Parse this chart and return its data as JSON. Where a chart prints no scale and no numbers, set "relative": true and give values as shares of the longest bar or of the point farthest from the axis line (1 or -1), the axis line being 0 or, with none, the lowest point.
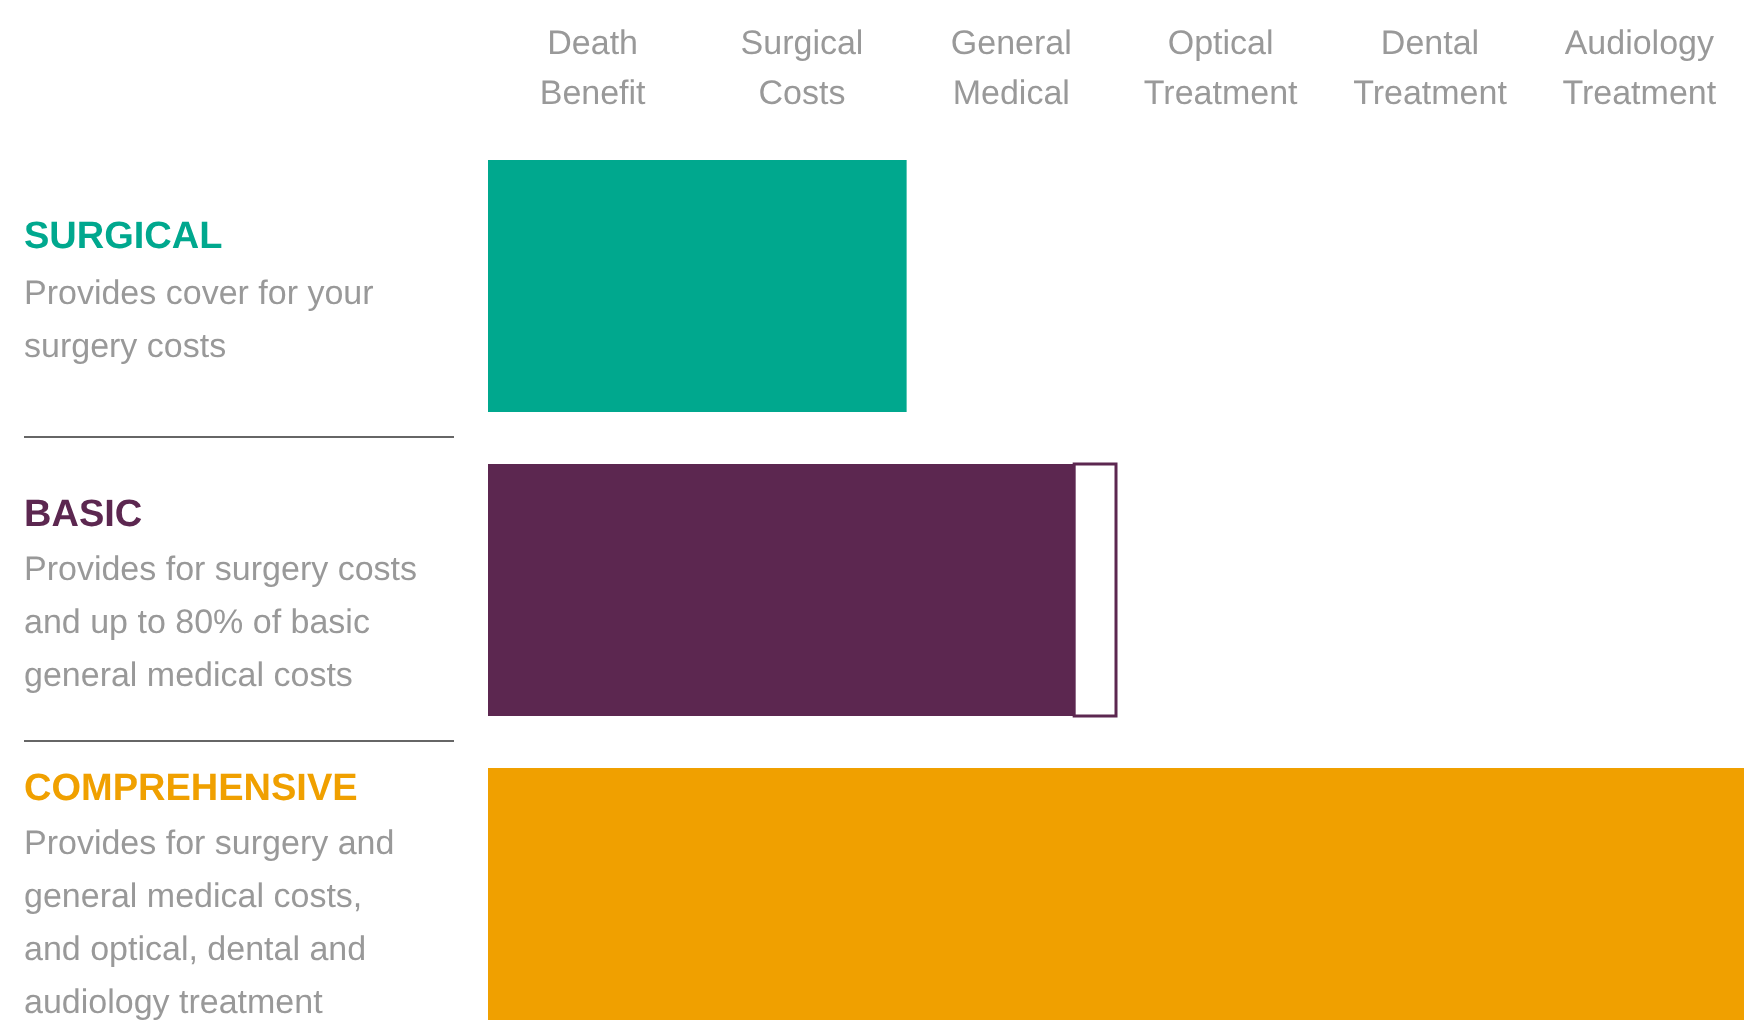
{
  "chart_data": {
    "type": "bar",
    "orientation": "horizontal",
    "stacked": true,
    "relative": true,
    "categories": [
      "SURGICAL",
      "BASIC",
      "COMPREHENSIVE"
    ],
    "series": [
      {
        "colors": [
          "#00a88e",
          "#5c2750",
          "#f0a000"
        ],
        "values": [
          0.3333,
          0.4667,
          1
        ]
      },
      {
        "color": "#ffffff",
        "values": [
          null,
          0.0333,
          null
        ]
      }
    ],
    "annotations": [
      "Death\nBenefit",
      "Surgical\nCosts",
      "General\nMedical",
      "Optical\nTreatment",
      "Dental\nTreatment",
      "Audiology\nTreatment",
      "Provides cover for your\nsurgery costs",
      "Provides for surgery costs\nand up to 80% of basic\ngeneral medical costs",
      "Provides for surgery and\ngeneral medical costs,\nand optical, dental and\naudiology treatment"
    ]
  }
}
